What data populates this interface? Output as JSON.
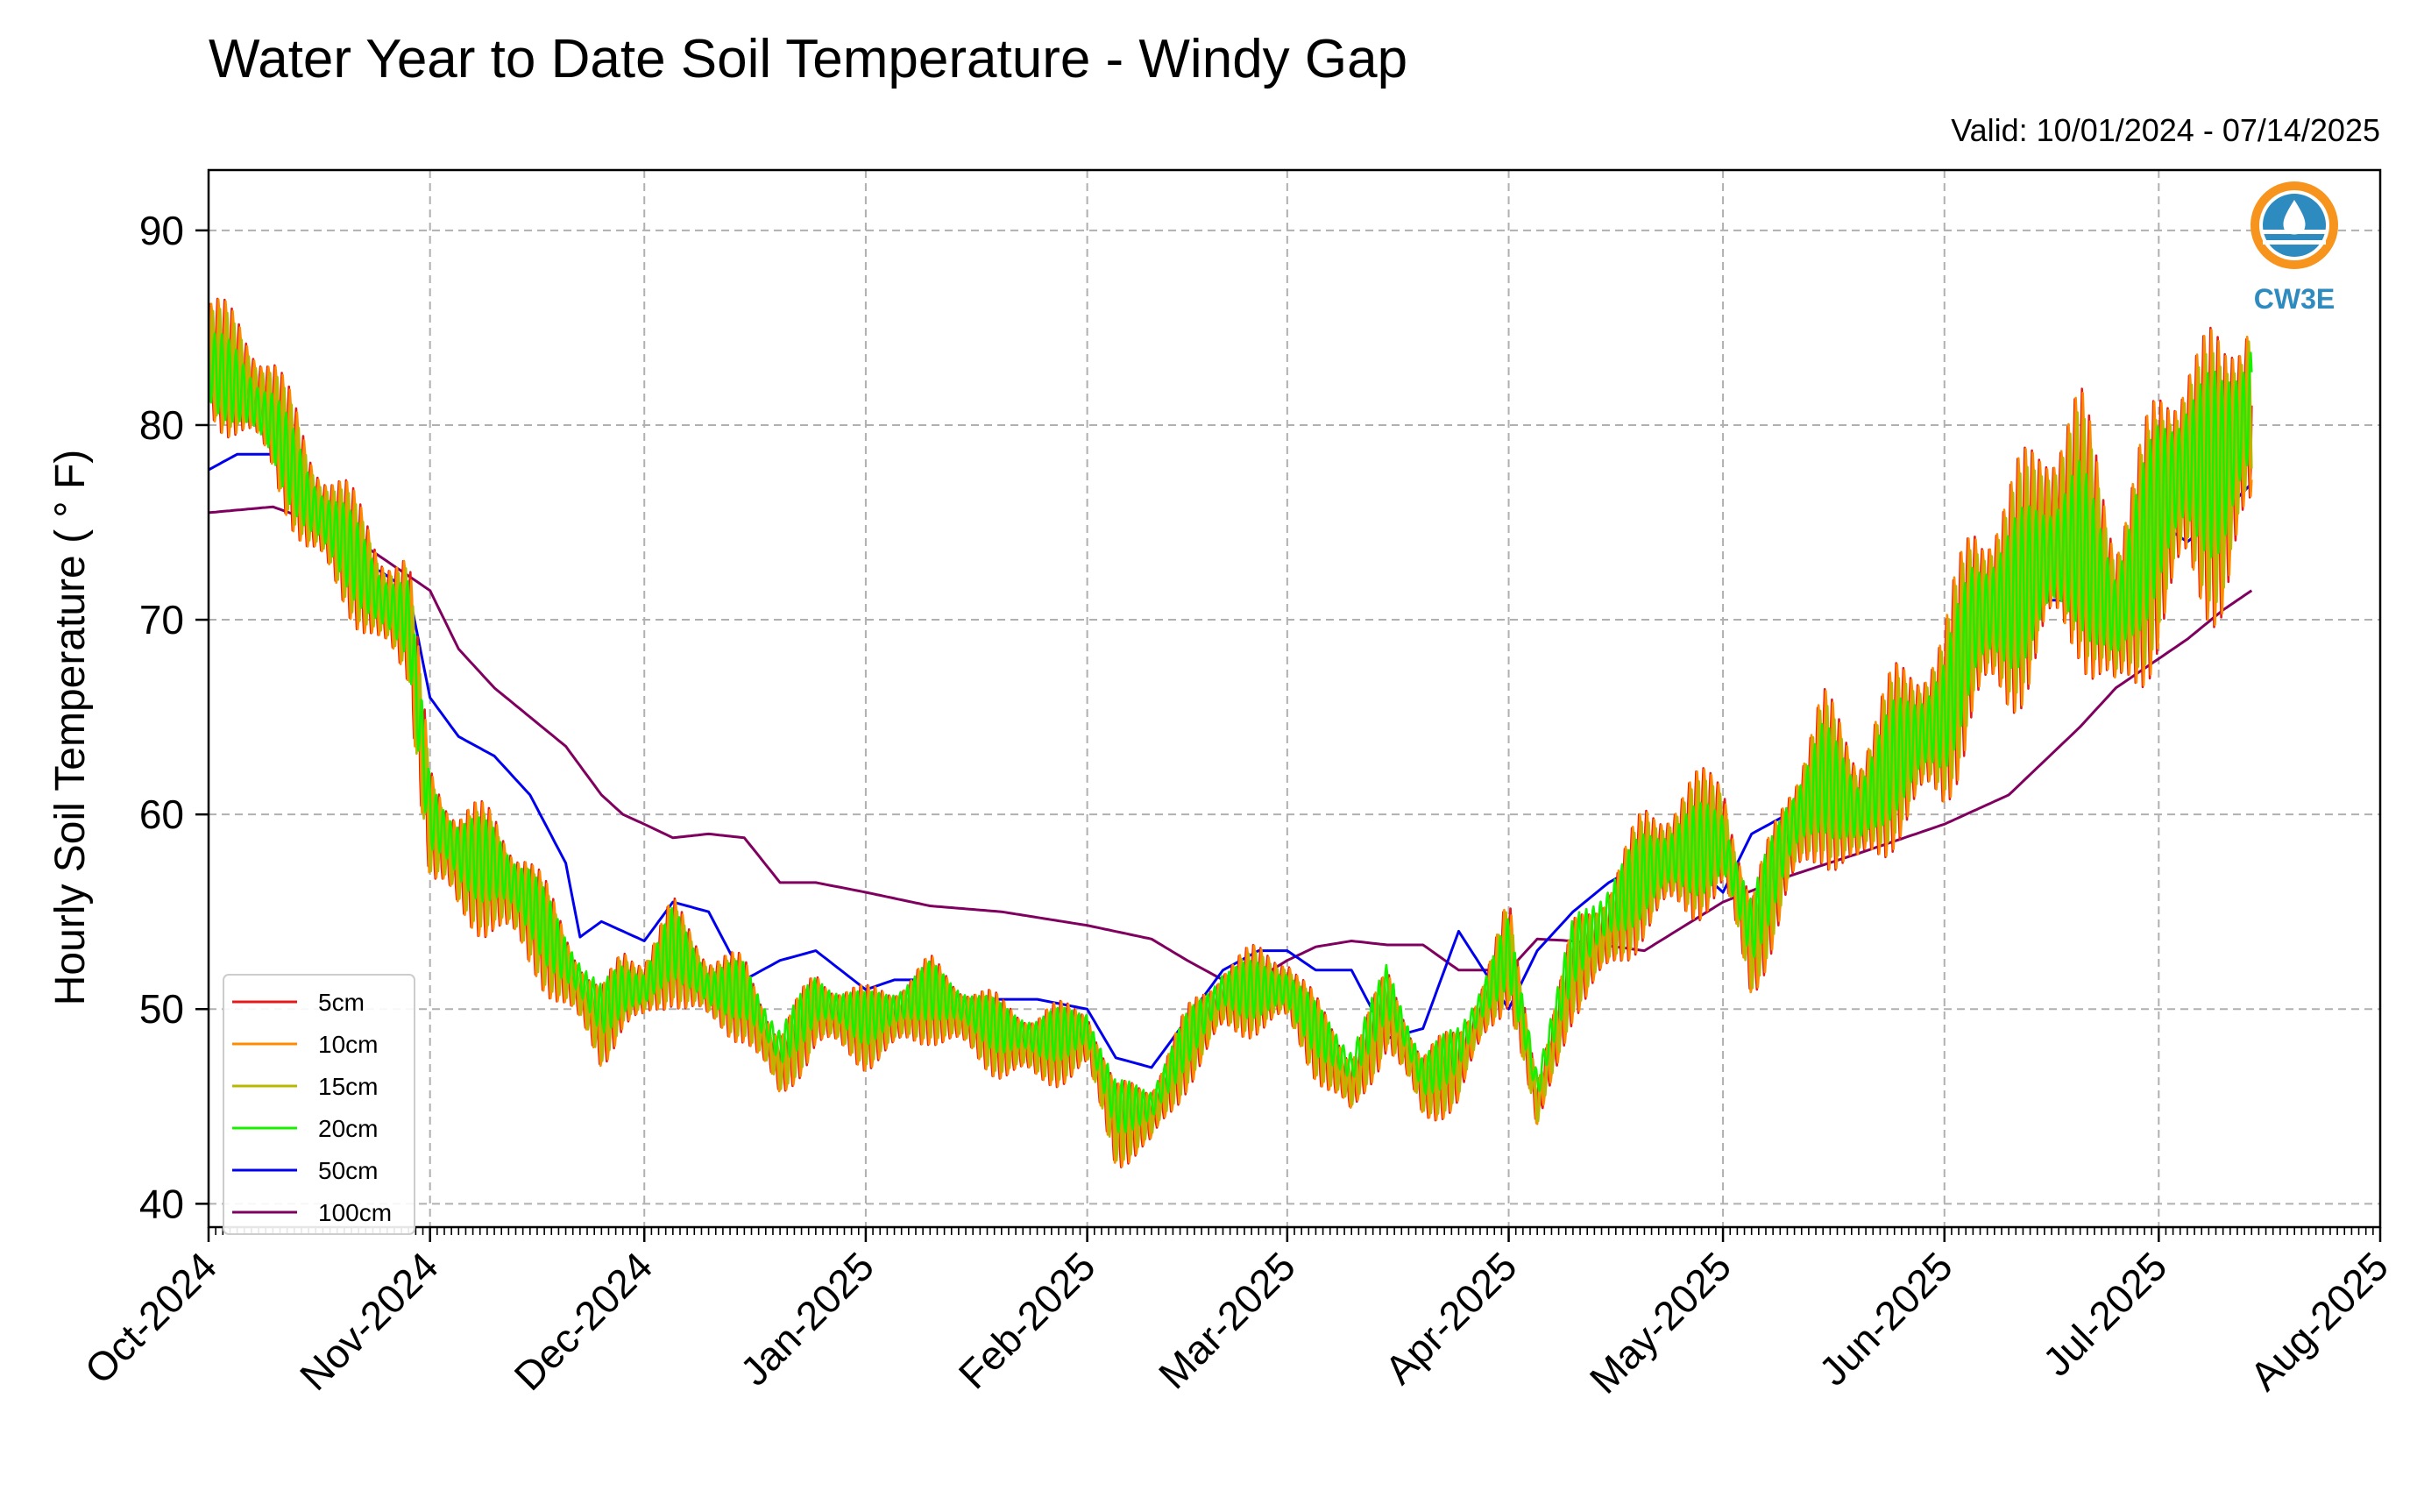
{
  "chart_data": {
    "type": "line",
    "title": "Water Year to Date Soil Temperature - Windy Gap",
    "subtitle": "Valid: 10/01/2024 - 07/14/2025",
    "xlabel": "",
    "ylabel": "Hourly Soil Temperature ( ° F)",
    "x_axis": "date",
    "xlim": [
      "2024-10-01",
      "2025-08-01"
    ],
    "ylim": [
      38.8,
      93.1
    ],
    "x_tick_labels": [
      "Oct-2024",
      "Nov-2024",
      "Dec-2024",
      "Jan-2025",
      "Feb-2025",
      "Mar-2025",
      "Apr-2025",
      "May-2025",
      "Jun-2025",
      "Jul-2025",
      "Aug-2025"
    ],
    "x_ticks": [
      "2024-10-01",
      "2024-11-01",
      "2024-12-01",
      "2025-01-01",
      "2025-02-01",
      "2025-03-01",
      "2025-04-01",
      "2025-05-01",
      "2025-06-01",
      "2025-07-01",
      "2025-08-01"
    ],
    "y_ticks": [
      40,
      50,
      60,
      70,
      80,
      90
    ],
    "y_tick_labels": [
      "40",
      "50",
      "60",
      "70",
      "80",
      "90"
    ],
    "grid": true,
    "legend_position": "lower-left",
    "logo_text": "CW3E",
    "series": [
      {
        "name": "5cm",
        "color": "#e8191a",
        "x": [
          "2024-10-01",
          "2024-10-05",
          "2024-10-10",
          "2024-10-15",
          "2024-10-20",
          "2024-10-25",
          "2024-10-29",
          "2024-11-01",
          "2024-11-05",
          "2024-11-10",
          "2024-11-15",
          "2024-11-20",
          "2024-11-25",
          "2024-11-28",
          "2024-12-01",
          "2024-12-05",
          "2024-12-10",
          "2024-12-15",
          "2024-12-20",
          "2024-12-25",
          "2025-01-01",
          "2025-01-05",
          "2025-01-10",
          "2025-01-15",
          "2025-01-20",
          "2025-01-25",
          "2025-02-01",
          "2025-02-05",
          "2025-02-10",
          "2025-02-15",
          "2025-02-20",
          "2025-02-25",
          "2025-03-01",
          "2025-03-05",
          "2025-03-10",
          "2025-03-15",
          "2025-03-20",
          "2025-03-25",
          "2025-04-01",
          "2025-04-05",
          "2025-04-10",
          "2025-04-15",
          "2025-04-20",
          "2025-04-25",
          "2025-05-01",
          "2025-05-05",
          "2025-05-10",
          "2025-05-15",
          "2025-05-20",
          "2025-05-25",
          "2025-06-01",
          "2025-06-05",
          "2025-06-10",
          "2025-06-15",
          "2025-06-20",
          "2025-06-25",
          "2025-07-01",
          "2025-07-05",
          "2025-07-10",
          "2025-07-14"
        ],
        "values": [
          83.5,
          82.5,
          80.5,
          76,
          74,
          71,
          70,
          59.5,
          57.5,
          57,
          55,
          52,
          49,
          51,
          51,
          53,
          51,
          50.5,
          47,
          50,
          49,
          49.5,
          50.5,
          49.5,
          48.5,
          48,
          48.5,
          44,
          44.5,
          48,
          50.5,
          51,
          51,
          48.5,
          46,
          50,
          46,
          47,
          53,
          45,
          52,
          54,
          57,
          58,
          59,
          53,
          58.5,
          62,
          60,
          63,
          65,
          70,
          71,
          74,
          75,
          70,
          75,
          78,
          77,
          81
        ]
      },
      {
        "name": "10cm",
        "color": "#ff8c00",
        "x": [
          "2024-10-01",
          "2024-10-05",
          "2024-10-10",
          "2024-10-15",
          "2024-10-20",
          "2024-10-25",
          "2024-10-29",
          "2024-11-01",
          "2024-11-05",
          "2024-11-10",
          "2024-11-15",
          "2024-11-20",
          "2024-11-25",
          "2024-11-28",
          "2024-12-01",
          "2024-12-05",
          "2024-12-10",
          "2024-12-15",
          "2024-12-20",
          "2024-12-25",
          "2025-01-01",
          "2025-01-05",
          "2025-01-10",
          "2025-01-15",
          "2025-01-20",
          "2025-01-25",
          "2025-02-01",
          "2025-02-05",
          "2025-02-10",
          "2025-02-15",
          "2025-02-20",
          "2025-02-25",
          "2025-03-01",
          "2025-03-05",
          "2025-03-10",
          "2025-03-15",
          "2025-03-20",
          "2025-03-25",
          "2025-04-01",
          "2025-04-05",
          "2025-04-10",
          "2025-04-15",
          "2025-04-20",
          "2025-04-25",
          "2025-05-01",
          "2025-05-05",
          "2025-05-10",
          "2025-05-15",
          "2025-05-20",
          "2025-05-25",
          "2025-06-01",
          "2025-06-05",
          "2025-06-10",
          "2025-06-15",
          "2025-06-20",
          "2025-06-25",
          "2025-07-01",
          "2025-07-05",
          "2025-07-10",
          "2025-07-14"
        ],
        "values": [
          83.5,
          82.5,
          80.5,
          76,
          74,
          71,
          70,
          59.5,
          57.5,
          57,
          55,
          52,
          49,
          51,
          51,
          53,
          51,
          50.5,
          47,
          50,
          49,
          49.5,
          50.5,
          49.5,
          48.5,
          48,
          48.5,
          44,
          44.5,
          48,
          50.5,
          51,
          51,
          48.5,
          46,
          50,
          46,
          47,
          53,
          45,
          52,
          54,
          57,
          58,
          59,
          53,
          58.5,
          62,
          60,
          63,
          65,
          70,
          71,
          74,
          75,
          70,
          75,
          78,
          77,
          81
        ]
      },
      {
        "name": "15cm",
        "color": "#b8b800",
        "x": [
          "2024-10-01",
          "2024-10-05",
          "2024-10-10",
          "2024-10-15",
          "2024-10-20",
          "2024-10-25",
          "2024-10-29",
          "2024-11-01",
          "2024-11-05",
          "2024-11-10",
          "2024-11-15",
          "2024-11-20",
          "2024-11-25",
          "2024-11-28",
          "2024-12-01",
          "2024-12-05",
          "2024-12-10",
          "2024-12-15",
          "2024-12-20",
          "2024-12-25",
          "2025-01-01",
          "2025-01-05",
          "2025-01-10",
          "2025-01-15",
          "2025-01-20",
          "2025-01-25",
          "2025-02-01",
          "2025-02-05",
          "2025-02-10",
          "2025-02-15",
          "2025-02-20",
          "2025-02-25",
          "2025-03-01",
          "2025-03-05",
          "2025-03-10",
          "2025-03-15",
          "2025-03-20",
          "2025-03-25",
          "2025-04-01",
          "2025-04-05",
          "2025-04-10",
          "2025-04-15",
          "2025-04-20",
          "2025-04-25",
          "2025-05-01",
          "2025-05-05",
          "2025-05-10",
          "2025-05-15",
          "2025-05-20",
          "2025-05-25",
          "2025-06-01",
          "2025-06-05",
          "2025-06-10",
          "2025-06-15",
          "2025-06-20",
          "2025-06-25",
          "2025-07-01",
          "2025-07-05",
          "2025-07-10",
          "2025-07-14"
        ],
        "values": [
          83.5,
          82.5,
          80.5,
          76,
          74,
          71,
          70,
          59.5,
          57.5,
          57,
          55,
          52,
          49,
          51,
          51,
          53,
          51,
          50.5,
          47,
          50,
          49,
          49.5,
          50.5,
          49.5,
          48.5,
          48,
          48.5,
          44,
          44.5,
          48,
          50.5,
          51,
          51,
          48.5,
          46,
          50,
          46,
          47,
          53,
          45,
          52,
          54,
          57,
          58,
          59,
          53,
          58.5,
          62,
          60,
          63,
          65,
          70,
          71,
          74,
          75,
          70,
          75,
          78,
          77,
          81
        ]
      },
      {
        "name": "20cm",
        "color": "#19f000",
        "x": [
          "2024-10-01",
          "2024-10-05",
          "2024-10-10",
          "2024-10-15",
          "2024-10-20",
          "2024-10-25",
          "2024-10-29",
          "2024-11-01",
          "2024-11-05",
          "2024-11-10",
          "2024-11-15",
          "2024-11-20",
          "2024-11-25",
          "2024-11-28",
          "2024-12-01",
          "2024-12-05",
          "2024-12-10",
          "2024-12-15",
          "2024-12-20",
          "2024-12-25",
          "2025-01-01",
          "2025-01-05",
          "2025-01-10",
          "2025-01-15",
          "2025-01-20",
          "2025-01-25",
          "2025-02-01",
          "2025-02-05",
          "2025-02-10",
          "2025-02-15",
          "2025-02-20",
          "2025-02-25",
          "2025-03-01",
          "2025-03-05",
          "2025-03-10",
          "2025-03-15",
          "2025-03-20",
          "2025-03-25",
          "2025-04-01",
          "2025-04-05",
          "2025-04-10",
          "2025-04-15",
          "2025-04-20",
          "2025-04-25",
          "2025-05-01",
          "2025-05-05",
          "2025-05-10",
          "2025-05-15",
          "2025-05-20",
          "2025-05-25",
          "2025-06-01",
          "2025-06-05",
          "2025-06-10",
          "2025-06-15",
          "2025-06-20",
          "2025-06-25",
          "2025-07-01",
          "2025-07-05",
          "2025-07-10",
          "2025-07-14"
        ],
        "values": [
          83,
          82,
          80,
          76,
          74,
          71,
          70,
          60,
          58,
          57.5,
          55.5,
          52.5,
          50,
          51,
          51,
          53.5,
          51,
          51,
          48,
          50.5,
          49.5,
          50,
          51,
          50,
          49,
          48.5,
          49,
          45,
          45,
          48.5,
          51,
          51,
          51,
          49,
          47,
          51,
          46.5,
          48,
          53,
          46,
          53,
          55,
          57,
          58,
          58.5,
          54,
          59,
          62,
          60,
          63,
          65,
          70,
          71,
          73,
          74,
          70,
          76,
          78,
          78,
          81
        ]
      },
      {
        "name": "50cm",
        "color": "#0000ee",
        "x": [
          "2024-10-01",
          "2024-10-05",
          "2024-10-10",
          "2024-10-15",
          "2024-10-20",
          "2024-10-25",
          "2024-10-29",
          "2024-11-01",
          "2024-11-05",
          "2024-11-10",
          "2024-11-15",
          "2024-11-20",
          "2024-11-22",
          "2024-11-25",
          "2024-12-01",
          "2024-12-05",
          "2024-12-10",
          "2024-12-15",
          "2024-12-20",
          "2024-12-25",
          "2025-01-01",
          "2025-01-05",
          "2025-01-10",
          "2025-01-15",
          "2025-01-20",
          "2025-01-25",
          "2025-02-01",
          "2025-02-05",
          "2025-02-10",
          "2025-02-15",
          "2025-02-20",
          "2025-02-25",
          "2025-03-01",
          "2025-03-05",
          "2025-03-10",
          "2025-03-15",
          "2025-03-20",
          "2025-03-25",
          "2025-04-01",
          "2025-04-05",
          "2025-04-10",
          "2025-04-15",
          "2025-04-20",
          "2025-04-25",
          "2025-05-01",
          "2025-05-05",
          "2025-05-10",
          "2025-05-15",
          "2025-05-20",
          "2025-05-25",
          "2025-06-01",
          "2025-06-05",
          "2025-06-10",
          "2025-06-15",
          "2025-06-20",
          "2025-06-25",
          "2025-07-01",
          "2025-07-05",
          "2025-07-10",
          "2025-07-14"
        ],
        "values": [
          77.7,
          78.5,
          78.5,
          76,
          73,
          72.5,
          71.5,
          66,
          64,
          63,
          61,
          57.5,
          53.7,
          54.5,
          53.5,
          55.5,
          55,
          51.5,
          52.5,
          53,
          51,
          51.5,
          51.5,
          50.5,
          50.5,
          50.5,
          50,
          47.5,
          47,
          49.5,
          52,
          53,
          53,
          52,
          52,
          48.5,
          49,
          54,
          50,
          53,
          55,
          56.5,
          57.5,
          58,
          56,
          59,
          60,
          62,
          61,
          63,
          64,
          68,
          71,
          71,
          71,
          70,
          75,
          74,
          75.5,
          77
        ]
      },
      {
        "name": "100cm",
        "color": "#800060",
        "x": [
          "2024-10-01",
          "2024-10-10",
          "2024-10-20",
          "2024-11-01",
          "2024-11-05",
          "2024-11-10",
          "2024-11-15",
          "2024-11-20",
          "2024-11-25",
          "2024-11-28",
          "2024-12-01",
          "2024-12-05",
          "2024-12-10",
          "2024-12-15",
          "2024-12-20",
          "2024-12-25",
          "2025-01-01",
          "2025-01-10",
          "2025-01-20",
          "2025-02-01",
          "2025-02-10",
          "2025-02-15",
          "2025-02-20",
          "2025-02-25",
          "2025-03-01",
          "2025-03-05",
          "2025-03-10",
          "2025-03-15",
          "2025-03-20",
          "2025-03-25",
          "2025-04-01",
          "2025-04-05",
          "2025-04-10",
          "2025-04-20",
          "2025-05-01",
          "2025-05-10",
          "2025-05-20",
          "2025-06-01",
          "2025-06-10",
          "2025-06-20",
          "2025-06-25",
          "2025-07-01",
          "2025-07-05",
          "2025-07-10",
          "2025-07-14"
        ],
        "values": [
          75.5,
          75.8,
          74.5,
          71.5,
          68.5,
          66.5,
          65,
          63.5,
          61,
          60,
          59.5,
          58.8,
          59,
          58.8,
          56.5,
          56.5,
          56,
          55.3,
          55,
          54.3,
          53.6,
          52.5,
          51.5,
          51.6,
          52.5,
          53.2,
          53.5,
          53.3,
          53.3,
          52,
          52,
          53.6,
          53.5,
          53,
          55.5,
          56.8,
          58,
          59.5,
          61,
          64.5,
          66.5,
          68,
          69,
          70.5,
          71.5
        ]
      }
    ]
  }
}
